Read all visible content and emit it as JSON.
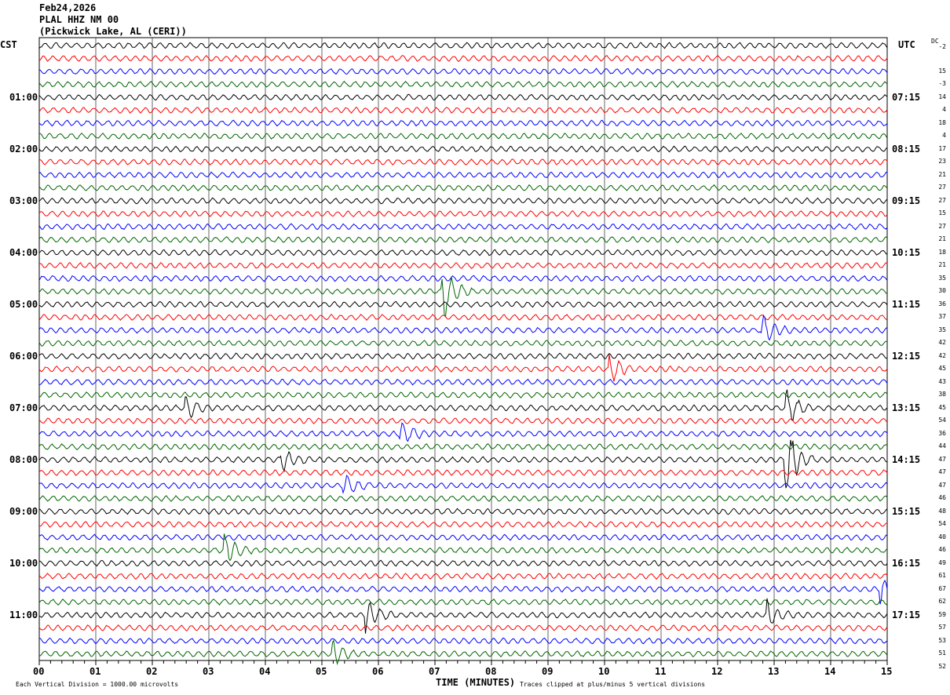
{
  "header": {
    "date": "Feb24,2026",
    "station": "PLAL HHZ NM 00",
    "location": "(Pickwick Lake, AL (CERI))"
  },
  "left_timezone": "CST",
  "right_timezone": "UTC",
  "dc_label": "DC",
  "footer": {
    "scale": "Each Vertical Division = 1000.00 microvolts",
    "xlabel": "TIME (MINUTES)",
    "clip_note": "Traces clipped at plus/minus 5 vertical divisions"
  },
  "chart_data": {
    "type": "line",
    "title": "Feb24,2026 PLAL HHZ NM 00 (Pickwick Lake, AL (CERI))",
    "xlabel": "TIME (MINUTES)",
    "xlim": [
      0,
      15
    ],
    "x_ticks": [
      "00",
      "01",
      "02",
      "03",
      "04",
      "05",
      "06",
      "07",
      "08",
      "09",
      "10",
      "11",
      "12",
      "13",
      "14",
      "15"
    ],
    "grid": true,
    "row_colors": [
      "#000000",
      "#ff0000",
      "#0000ff",
      "#006400"
    ],
    "left_hour_labels": [
      {
        "row": 4,
        "label": "01:00"
      },
      {
        "row": 8,
        "label": "02:00"
      },
      {
        "row": 12,
        "label": "03:00"
      },
      {
        "row": 16,
        "label": "04:00"
      },
      {
        "row": 20,
        "label": "05:00"
      },
      {
        "row": 24,
        "label": "06:00"
      },
      {
        "row": 28,
        "label": "07:00"
      },
      {
        "row": 32,
        "label": "08:00"
      },
      {
        "row": 36,
        "label": "09:00"
      },
      {
        "row": 40,
        "label": "10:00"
      },
      {
        "row": 44,
        "label": "11:00"
      }
    ],
    "right_hour_labels": [
      {
        "row": 4,
        "label": "07:15"
      },
      {
        "row": 8,
        "label": "08:15"
      },
      {
        "row": 12,
        "label": "09:15"
      },
      {
        "row": 16,
        "label": "10:15"
      },
      {
        "row": 20,
        "label": "11:15"
      },
      {
        "row": 24,
        "label": "12:15"
      },
      {
        "row": 28,
        "label": "13:15"
      },
      {
        "row": 32,
        "label": "14:15"
      },
      {
        "row": 36,
        "label": "15:15"
      },
      {
        "row": 40,
        "label": "16:15"
      },
      {
        "row": 44,
        "label": "17:15"
      }
    ],
    "dc_offsets": [
      "-2",
      "15",
      "-3",
      "14",
      "4",
      "18",
      "4",
      "17",
      "23",
      "21",
      "27",
      "27",
      "15",
      "27",
      "21",
      "18",
      "21",
      "35",
      "30",
      "36",
      "37",
      "35",
      "42",
      "42",
      "45",
      "43",
      "38",
      "45",
      "54",
      "36",
      "44",
      "47",
      "47",
      "47",
      "46",
      "48",
      "54",
      "40",
      "46",
      "49",
      "61",
      "67",
      "62",
      "59",
      "57",
      "53",
      "51",
      "52"
    ],
    "events": [
      {
        "row": 19,
        "minute": 7.15,
        "amplitude": 3
      },
      {
        "row": 22,
        "minute": 12.8,
        "amplitude": 1.5
      },
      {
        "row": 25,
        "minute": 10.1,
        "amplitude": 1.5
      },
      {
        "row": 28,
        "minute": 2.6,
        "amplitude": 1.2
      },
      {
        "row": 28,
        "minute": 13.2,
        "amplitude": 2
      },
      {
        "row": 30,
        "minute": 6.4,
        "amplitude": 1.3
      },
      {
        "row": 32,
        "minute": 13.2,
        "amplitude": 4
      },
      {
        "row": 32,
        "minute": 4.3,
        "amplitude": 1.2
      },
      {
        "row": 34,
        "minute": 5.4,
        "amplitude": 1.2
      },
      {
        "row": 39,
        "minute": 3.3,
        "amplitude": 1.5
      },
      {
        "row": 42,
        "minute": 14.9,
        "amplitude": 1.5
      },
      {
        "row": 44,
        "minute": 12.9,
        "amplitude": 1.2
      },
      {
        "row": 44,
        "minute": 5.8,
        "amplitude": 1.5
      },
      {
        "row": 47,
        "minute": 5.2,
        "amplitude": 1.2
      }
    ]
  }
}
